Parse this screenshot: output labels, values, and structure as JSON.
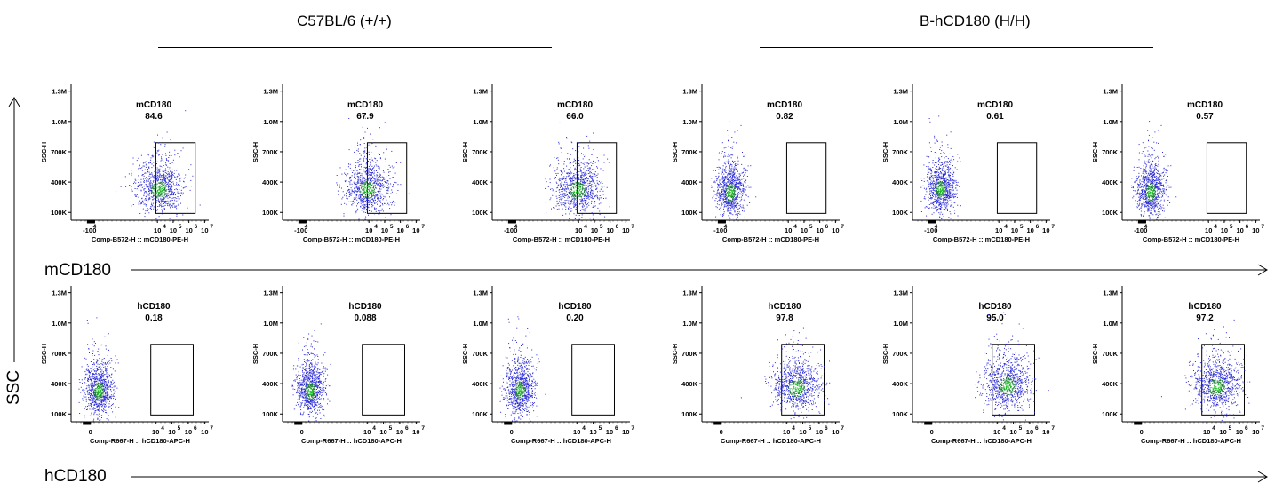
{
  "groups": [
    {
      "label": "C57BL/6 (+/+)"
    },
    {
      "label": "B-hCD180 (H/H)"
    }
  ],
  "row_labels": {
    "top_x": "mCD180",
    "bottom_x": "hCD180",
    "y": "SSC"
  },
  "chart_data": [
    {
      "type": "scatter",
      "panel": "r1c1",
      "gate_name": "mCD180",
      "gate_value": "84.6",
      "ylabel": "SSC-H",
      "xlabel": "Comp-B572-H :: mCD180-PE-H",
      "y_ticks": [
        "1.3M",
        "1.0M",
        "700K",
        "400K",
        "100K"
      ],
      "x_ticks": [
        "-10 4",
        "0",
        "10 4",
        "10 5",
        "10 6",
        "10 7"
      ],
      "gate_range_log": [
        3.9,
        6.4
      ],
      "cluster_center": [
        4.1,
        330000
      ]
    },
    {
      "type": "scatter",
      "panel": "r1c2",
      "gate_name": "mCD180",
      "gate_value": "67.9",
      "ylabel": "SSC-H",
      "xlabel": "Comp-B572-H :: mCD180-PE-H",
      "y_ticks": [
        "1.3M",
        "1.0M",
        "700K",
        "400K",
        "100K"
      ],
      "x_ticks": [
        "-10 4",
        "0",
        "10 4",
        "10 5",
        "10 6",
        "10 7"
      ],
      "gate_range_log": [
        3.9,
        6.4
      ],
      "cluster_center": [
        3.9,
        330000
      ]
    },
    {
      "type": "scatter",
      "panel": "r1c3",
      "gate_name": "mCD180",
      "gate_value": "66.0",
      "ylabel": "SSC-H",
      "xlabel": "Comp-B572-H :: mCD180-PE-H",
      "y_ticks": [
        "1.3M",
        "1.0M",
        "700K",
        "400K",
        "100K"
      ],
      "x_ticks": [
        "-10 4",
        "0",
        "10 4",
        "10 5",
        "10 6",
        "10 7"
      ],
      "gate_range_log": [
        3.9,
        6.4
      ],
      "cluster_center": [
        3.9,
        320000
      ]
    },
    {
      "type": "scatter",
      "panel": "r1c4",
      "gate_name": "mCD180",
      "gate_value": "0.82",
      "ylabel": "SSC-H",
      "xlabel": "Comp-B572-H :: mCD180-PE-H",
      "y_ticks": [
        "1.3M",
        "1.0M",
        "700K",
        "400K",
        "100K"
      ],
      "x_ticks": [
        "-10 4",
        "0",
        "10 4",
        "10 5",
        "10 6",
        "10 7"
      ],
      "gate_range_log": [
        3.9,
        6.4
      ],
      "cluster_center": [
        0.3,
        300000
      ]
    },
    {
      "type": "scatter",
      "panel": "r1c5",
      "gate_name": "mCD180",
      "gate_value": "0.61",
      "ylabel": "SSC-H",
      "xlabel": "Comp-B572-H :: mCD180-PE-H",
      "y_ticks": [
        "1.3M",
        "1.0M",
        "700K",
        "400K",
        "100K"
      ],
      "x_ticks": [
        "-10 4",
        "0",
        "10 4",
        "10 5",
        "10 6",
        "10 7"
      ],
      "gate_range_log": [
        3.9,
        6.4
      ],
      "cluster_center": [
        0.3,
        330000
      ]
    },
    {
      "type": "scatter",
      "panel": "r1c6",
      "gate_name": "mCD180",
      "gate_value": "0.57",
      "ylabel": "SSC-H",
      "xlabel": "Comp-B572-H :: mCD180-PE-H",
      "y_ticks": [
        "1.3M",
        "1.0M",
        "700K",
        "400K",
        "100K"
      ],
      "x_ticks": [
        "-10 4",
        "0",
        "10 4",
        "10 5",
        "10 6",
        "10 7"
      ],
      "gate_range_log": [
        3.9,
        6.4
      ],
      "cluster_center": [
        0.3,
        300000
      ]
    },
    {
      "type": "scatter",
      "panel": "r2c1",
      "gate_name": "hCD180",
      "gate_value": "0.18",
      "ylabel": "SSC-H",
      "xlabel": "Comp-R667-H :: hCD180-APC-H",
      "y_ticks": [
        "1.3M",
        "1.0M",
        "700K",
        "400K",
        "100K"
      ],
      "x_ticks": [
        "0",
        "10 4",
        "10 5",
        "10 6",
        "10 7"
      ],
      "gate_range_log": [
        3.7,
        6.3
      ],
      "cluster_center": [
        0.5,
        330000
      ]
    },
    {
      "type": "scatter",
      "panel": "r2c2",
      "gate_name": "hCD180",
      "gate_value": "0.088",
      "ylabel": "SSC-H",
      "xlabel": "Comp-R667-H :: hCD180-APC-H",
      "y_ticks": [
        "1.3M",
        "1.0M",
        "700K",
        "400K",
        "100K"
      ],
      "x_ticks": [
        "0",
        "10 4",
        "10 5",
        "10 6",
        "10 7"
      ],
      "gate_range_log": [
        3.7,
        6.3
      ],
      "cluster_center": [
        0.5,
        330000
      ]
    },
    {
      "type": "scatter",
      "panel": "r2c3",
      "gate_name": "hCD180",
      "gate_value": "0.20",
      "ylabel": "SSC-H",
      "xlabel": "Comp-R667-H :: hCD180-APC-H",
      "y_ticks": [
        "1.3M",
        "1.0M",
        "700K",
        "400K",
        "100K"
      ],
      "x_ticks": [
        "0",
        "10 4",
        "10 5",
        "10 6",
        "10 7"
      ],
      "gate_range_log": [
        3.7,
        6.3
      ],
      "cluster_center": [
        0.5,
        340000
      ]
    },
    {
      "type": "scatter",
      "panel": "r2c4",
      "gate_name": "hCD180",
      "gate_value": "97.8",
      "ylabel": "SSC-H",
      "xlabel": "Comp-R667-H :: hCD180-APC-H",
      "y_ticks": [
        "1.3M",
        "1.0M",
        "700K",
        "400K",
        "100K"
      ],
      "x_ticks": [
        "0",
        "10 4",
        "10 5",
        "10 6",
        "10 7"
      ],
      "gate_range_log": [
        3.7,
        6.3
      ],
      "cluster_center": [
        4.6,
        360000
      ]
    },
    {
      "type": "scatter",
      "panel": "r2c5",
      "gate_name": "hCD180",
      "gate_value": "95.0",
      "ylabel": "SSC-H",
      "xlabel": "Comp-R667-H :: hCD180-APC-H",
      "y_ticks": [
        "1.3M",
        "1.0M",
        "700K",
        "400K",
        "100K"
      ],
      "x_ticks": [
        "0",
        "10 4",
        "10 5",
        "10 6",
        "10 7"
      ],
      "gate_range_log": [
        3.7,
        6.3
      ],
      "cluster_center": [
        4.6,
        380000
      ]
    },
    {
      "type": "scatter",
      "panel": "r2c6",
      "gate_name": "hCD180",
      "gate_value": "97.2",
      "ylabel": "SSC-H",
      "xlabel": "Comp-R667-H :: hCD180-APC-H",
      "y_ticks": [
        "1.3M",
        "1.0M",
        "700K",
        "400K",
        "100K"
      ],
      "x_ticks": [
        "0",
        "10 4",
        "10 5",
        "10 6",
        "10 7"
      ],
      "gate_range_log": [
        3.7,
        6.3
      ],
      "cluster_center": [
        4.6,
        370000
      ]
    }
  ],
  "colors": {
    "dot_low": "#2a2ad8",
    "dot_mid": "#1f7a3a",
    "dot_high": "#12b81a"
  }
}
